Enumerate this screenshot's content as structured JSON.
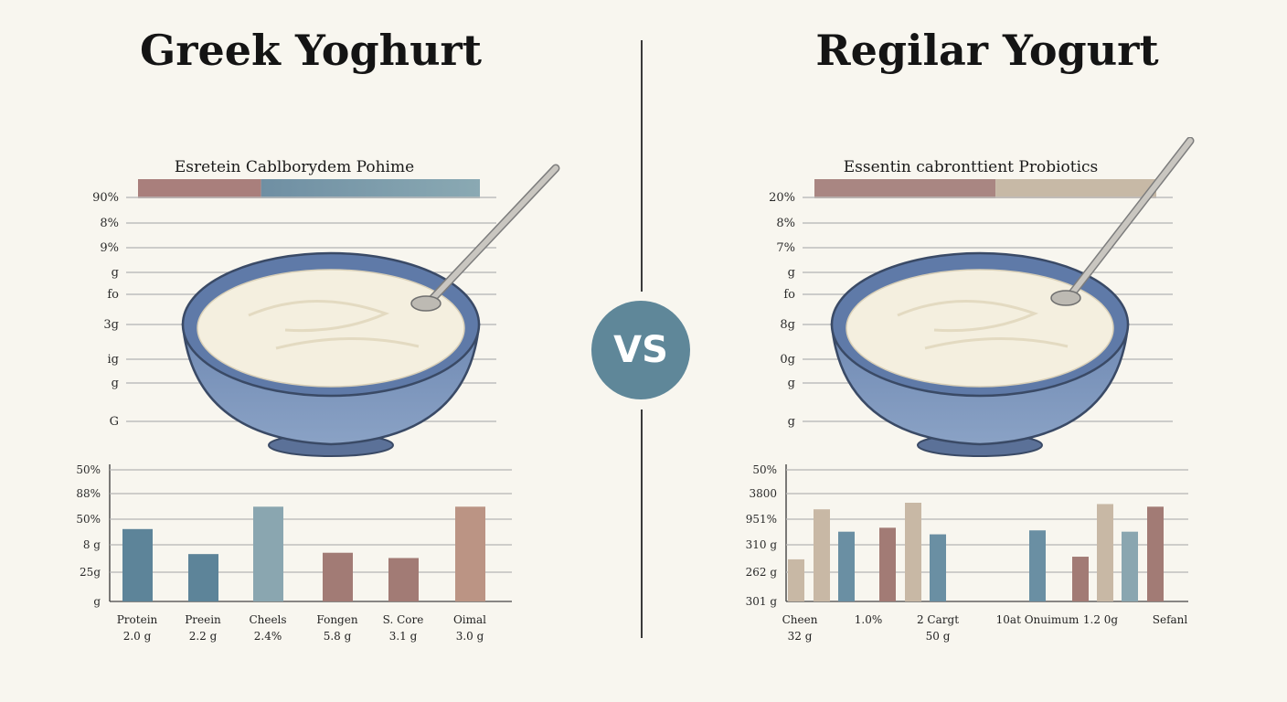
{
  "page": {
    "left_title": "Greek Yoghurt",
    "right_title": "Regilar Yogurt",
    "vs_label": "VS"
  },
  "chart_data": [
    {
      "type": "bar",
      "name": "greek-top",
      "title": "Esretein Cablborydem Pohime",
      "horizontal_stacked_bar": {
        "segments": [
          {
            "value": 0.36,
            "color": "#a97f7c"
          },
          {
            "value": 0.64,
            "color": "#6f8fa3",
            "gradient_to": "#8aa9b3"
          }
        ]
      },
      "tick_labels": [
        "90%",
        "8%",
        "9%",
        "g",
        "fo",
        "3g",
        "ig",
        "g",
        "G"
      ],
      "grid": true,
      "colors": {
        "left": "#a97f7c",
        "right": "#6f8fa3"
      }
    },
    {
      "type": "bar",
      "name": "greek-bottom",
      "ytick_labels": [
        "50%",
        "88%",
        "50%",
        "8 g",
        "25g",
        "g"
      ],
      "ylim": [
        0,
        100
      ],
      "grid": true,
      "categories": [
        {
          "name": "Protein",
          "value_label": "2.0 g"
        },
        {
          "name": "Preein",
          "value_label": "2.2 g"
        },
        {
          "name": "Cheels",
          "value_label": "2.4%"
        },
        {
          "name": "Fongen",
          "value_label": "5.8 g"
        },
        {
          "name": "S. Core",
          "value_label": "3.1 g"
        },
        {
          "name": "Oimal",
          "value_label": "3.0 g"
        }
      ],
      "values": [
        55,
        36,
        72,
        37,
        33,
        72
      ],
      "bar_colors": [
        "#5d8499",
        "#5d8499",
        "#8aa6b0",
        "#a27b75",
        "#a27b75",
        "#bb9484"
      ]
    },
    {
      "type": "bar",
      "name": "regular-top",
      "title": "Essentin cabronttient Probiotics",
      "horizontal_stacked_bar": {
        "segments": [
          {
            "value": 0.53,
            "color": "#a98682"
          },
          {
            "value": 0.47,
            "color": "#c7b9a6"
          }
        ]
      },
      "tick_labels": [
        "20%",
        "8%",
        "7%",
        "g",
        "fo",
        "8g",
        "0g",
        "g",
        "g"
      ],
      "grid": true,
      "colors": {
        "left": "#a98682",
        "right": "#c7b9a6"
      }
    },
    {
      "type": "bar",
      "name": "regular-bottom",
      "ytick_labels": [
        "50%",
        "3800",
        "951%",
        "310 g",
        "262 g",
        "301 g"
      ],
      "ylim": [
        0,
        100
      ],
      "grid": true,
      "bars": [
        {
          "value": 32,
          "color": "#c8b8a5"
        },
        {
          "value": 70,
          "color": "#c8b8a5"
        },
        {
          "value": 53,
          "color": "#6a8fa3"
        },
        {
          "value": 56,
          "color": "#a27b75"
        },
        {
          "value": 75,
          "color": "#c8b8a5"
        },
        {
          "value": 51,
          "color": "#6a8fa3"
        },
        {
          "value": 54,
          "color": "#6a8fa3"
        },
        {
          "value": 34,
          "color": "#a27b75"
        },
        {
          "value": 74,
          "color": "#c8b8a5"
        },
        {
          "value": 53,
          "color": "#8aa6b0"
        },
        {
          "value": 72,
          "color": "#a27b75"
        }
      ],
      "category_labels": [
        {
          "line1": "Cheen",
          "line2": "32 g"
        },
        {
          "line1": "1.0%",
          "line2": ""
        },
        {
          "line1": "2 Cargt",
          "line2": "50 g"
        },
        {
          "line1": "10at Onuimum",
          "line2": ""
        },
        {
          "line1": "1.2 0g",
          "line2": ""
        },
        {
          "line1": "Sefanl",
          "line2": ""
        }
      ]
    }
  ]
}
